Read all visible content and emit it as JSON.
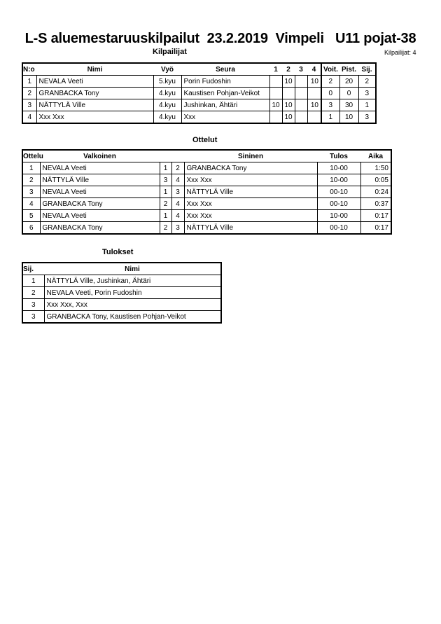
{
  "title": "L-S aluemestaruuskilpailut  23.2.2019  Vimpeli   U11 pojat-38",
  "competitors": {
    "heading": "Kilpailijat",
    "count_label": "Kilpailijat: 4",
    "columns": [
      "N:o",
      "Nimi",
      "Vyö",
      "Seura",
      "1",
      "2",
      "3",
      "4",
      "Voit.",
      "Pist.",
      "Sij."
    ],
    "rows": [
      [
        "1",
        "NEVALA Veeti",
        "5.kyu",
        "Porin Fudoshin",
        "",
        "10",
        "",
        "10",
        "2",
        "20",
        "2"
      ],
      [
        "2",
        "GRANBACKA  Tony",
        "4.kyu",
        "Kaustisen Pohjan-Veikot",
        "",
        "",
        "",
        "",
        "0",
        "0",
        "3"
      ],
      [
        "3",
        "NÄTTYLÄ  Ville",
        "4.kyu",
        "Jushinkan, Ähtäri",
        "10",
        "10",
        "",
        "10",
        "3",
        "30",
        "1"
      ],
      [
        "4",
        "Xxx Xxx",
        "4.kyu",
        "Xxx",
        "",
        "10",
        "",
        "",
        "1",
        "10",
        "3"
      ]
    ]
  },
  "matches": {
    "heading": "Ottelut",
    "columns": [
      "Ottelu",
      "Valkoinen",
      "",
      "",
      "Sininen",
      "Tulos",
      "Aika"
    ],
    "rows": [
      [
        "1",
        "NEVALA Veeti",
        "1",
        "2",
        "GRANBACKA  Tony",
        "10-00",
        "1:50"
      ],
      [
        "2",
        "NÄTTYLÄ  Ville",
        "3",
        "4",
        "Xxx Xxx",
        "10-00",
        "0:05"
      ],
      [
        "3",
        "NEVALA Veeti",
        "1",
        "3",
        "NÄTTYLÄ  Ville",
        "00-10",
        "0:24"
      ],
      [
        "4",
        "GRANBACKA  Tony",
        "2",
        "4",
        "Xxx Xxx",
        "00-10",
        "0:37"
      ],
      [
        "5",
        "NEVALA Veeti",
        "1",
        "4",
        "Xxx Xxx",
        "10-00",
        "0:17"
      ],
      [
        "6",
        "GRANBACKA  Tony",
        "2",
        "3",
        "NÄTTYLÄ  Ville",
        "00-10",
        "0:17"
      ]
    ]
  },
  "results": {
    "heading": "Tulokset",
    "columns": [
      "Sij.",
      "Nimi"
    ],
    "rows": [
      [
        "1",
        "NÄTTYLÄ  Ville, Jushinkan, Ähtäri"
      ],
      [
        "2",
        "NEVALA Veeti, Porin Fudoshin"
      ],
      [
        "3",
        "Xxx Xxx, Xxx"
      ],
      [
        "3",
        "GRANBACKA  Tony, Kaustisen Pohjan-Veikot"
      ]
    ]
  }
}
